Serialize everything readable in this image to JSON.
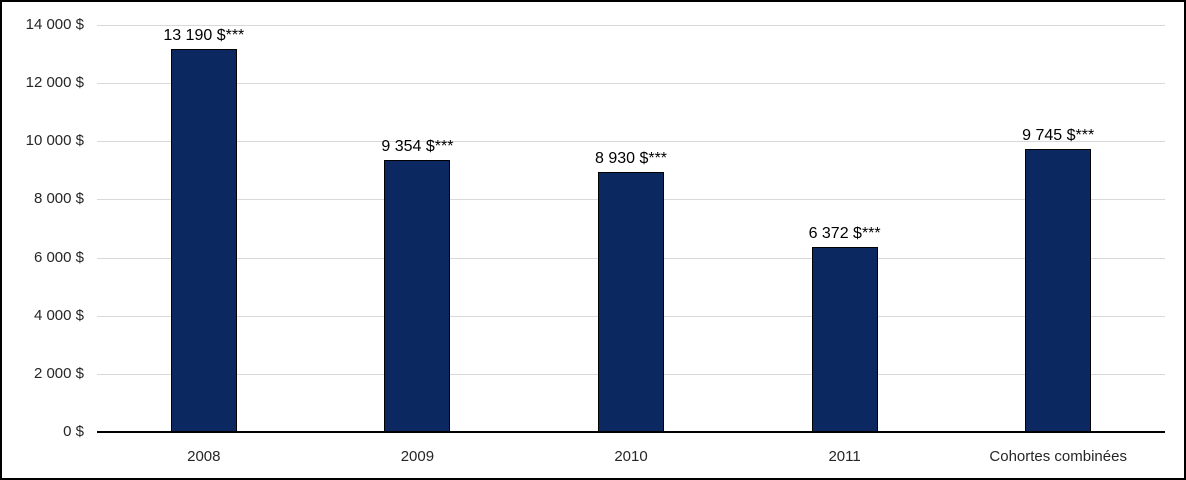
{
  "chart_data": {
    "type": "bar",
    "title": "",
    "xlabel": "",
    "ylabel": "",
    "categories": [
      "2008",
      "2009",
      "2010",
      "2011",
      "Cohortes combinées"
    ],
    "values": [
      13190,
      9354,
      8930,
      6372,
      9745
    ],
    "bar_labels": [
      "13 190 $***",
      "9 354 $***",
      "8 930 $***",
      "6 372 $***",
      "9 745 $***"
    ],
    "ylim": [
      0,
      14000
    ],
    "y_ticks": [
      0,
      2000,
      4000,
      6000,
      8000,
      10000,
      12000,
      14000
    ],
    "y_tick_labels": [
      "0 $",
      "2 000 $",
      "4 000 $",
      "6 000 $",
      "8 000 $",
      "10 000 $",
      "12 000 $",
      "14 000 $"
    ],
    "grid": "horizontal",
    "legend": "none",
    "colors": {
      "bar_fill": "#0b2960",
      "bar_border": "#000000",
      "gridline": "#d9d9d9",
      "axis_line": "#000000",
      "tick_text": "#262626",
      "frame_border": "#000000",
      "background": "#ffffff"
    }
  }
}
